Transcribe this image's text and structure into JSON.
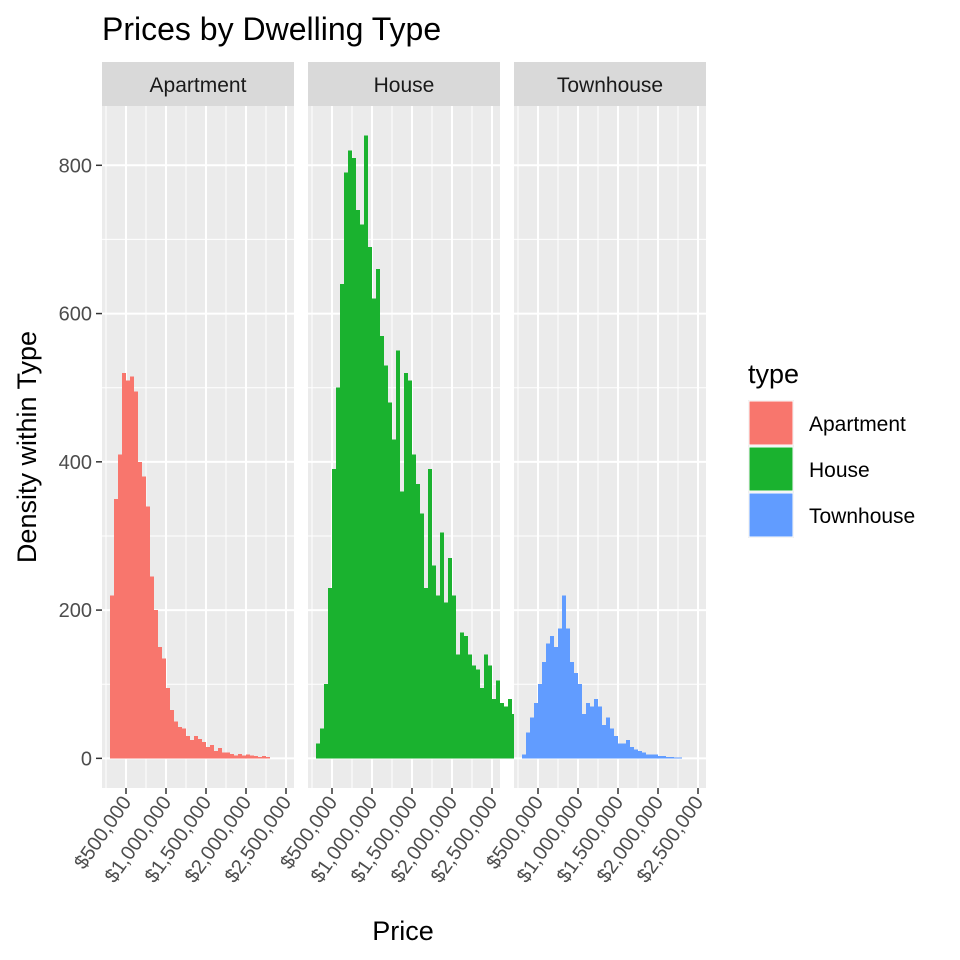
{
  "chart_data": {
    "type": "bar",
    "subtype": "faceted-histogram",
    "title": "Prices by Dwelling Type",
    "xlabel": "Price",
    "ylabel": "Density within Type",
    "ylim": [
      -40,
      880
    ],
    "xlim": [
      200000,
      2600000
    ],
    "y_ticks": [
      0,
      200,
      400,
      600,
      800
    ],
    "y_tick_labels": [
      "0",
      "200",
      "400",
      "600",
      "800"
    ],
    "x_ticks": [
      500000,
      1000000,
      1500000,
      2000000,
      2500000
    ],
    "x_tick_labels": [
      "$500,000",
      "$1,000,000",
      "$1,500,000",
      "$2,000,000",
      "$2,500,000"
    ],
    "bin_start": 300000,
    "bin_width": 50000,
    "grid": true,
    "legend": {
      "title": "type",
      "position": "right",
      "entries": [
        "Apartment",
        "House",
        "Townhouse"
      ]
    },
    "series": [
      {
        "name": "Apartment",
        "color": "#F8766D",
        "values": [
          220,
          350,
          410,
          520,
          510,
          515,
          495,
          400,
          380,
          340,
          245,
          200,
          150,
          135,
          95,
          65,
          50,
          42,
          40,
          30,
          25,
          30,
          26,
          22,
          15,
          18,
          10,
          14,
          8,
          8,
          6,
          4,
          6,
          4,
          5,
          4,
          3,
          2,
          3,
          2
        ]
      },
      {
        "name": "House",
        "color": "#1AB22F",
        "values": [
          20,
          40,
          100,
          230,
          390,
          500,
          640,
          790,
          820,
          810,
          740,
          720,
          840,
          690,
          620,
          660,
          570,
          530,
          480,
          430,
          550,
          360,
          520,
          510,
          410,
          370,
          330,
          230,
          390,
          260,
          220,
          305,
          210,
          270,
          220,
          140,
          170,
          165,
          140,
          125,
          120,
          95,
          140,
          125,
          80,
          105,
          75,
          70,
          80,
          60,
          90,
          65,
          50,
          40,
          30
        ]
      },
      {
        "name": "Townhouse",
        "color": "#619CFF",
        "values": [
          5,
          35,
          55,
          75,
          100,
          130,
          155,
          165,
          150,
          175,
          220,
          175,
          130,
          115,
          100,
          60,
          75,
          70,
          80,
          70,
          45,
          55,
          40,
          30,
          20,
          20,
          25,
          15,
          12,
          10,
          8,
          5,
          5,
          5,
          3,
          3,
          2,
          2,
          1,
          1
        ]
      }
    ],
    "colors": {
      "panel_bg": "#EBEBEB",
      "strip_bg": "#D9D9D9",
      "grid_major": "#FFFFFF",
      "tick_text": "#4D4D4D"
    }
  }
}
